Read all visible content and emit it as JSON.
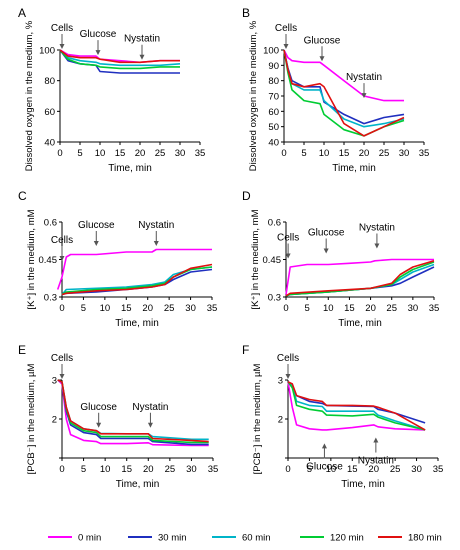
{
  "chart_data": [
    {
      "panel": "A",
      "type": "line",
      "ylabel": "Dissolved oxygen in the medium, %",
      "xlabel": "Time, min",
      "xlim": [
        0,
        35
      ],
      "ylim": [
        40,
        100
      ],
      "xticks": [
        0,
        5,
        10,
        15,
        20,
        25,
        30,
        35
      ],
      "yticks": [
        40,
        60,
        80,
        100
      ],
      "yticklabels": [
        "40",
        "60",
        "80",
        "100"
      ],
      "annotations": [
        {
          "text": "Cells",
          "x": 0.5,
          "y": 100
        },
        {
          "text": "Glucose",
          "x": 9.5,
          "y": 96
        },
        {
          "text": "Nystatin",
          "x": 20.5,
          "y": 93
        }
      ],
      "series": [
        {
          "name": "0 min",
          "x": [
            0,
            2,
            5,
            9,
            10,
            15,
            20,
            25,
            30
          ],
          "y": [
            100,
            97,
            96,
            96,
            94,
            93,
            92,
            93,
            93
          ]
        },
        {
          "name": "30 min",
          "x": [
            0,
            2,
            5,
            9,
            10,
            15,
            20,
            25,
            30
          ],
          "y": [
            100,
            93,
            91,
            90,
            86,
            85,
            85,
            85,
            85
          ]
        },
        {
          "name": "60 min",
          "x": [
            0,
            2,
            5,
            9,
            10,
            15,
            20,
            25,
            30
          ],
          "y": [
            100,
            95,
            93,
            92,
            91,
            90,
            90,
            90,
            91
          ]
        },
        {
          "name": "120 min",
          "x": [
            0,
            2,
            5,
            9,
            10,
            15,
            20,
            25,
            30
          ],
          "y": [
            100,
            94,
            91,
            90,
            89,
            88,
            88,
            89,
            89
          ]
        },
        {
          "name": "180 min",
          "x": [
            0,
            2,
            5,
            9,
            10,
            15,
            20,
            25,
            30
          ],
          "y": [
            100,
            96,
            95,
            95,
            94,
            92,
            92,
            93,
            93
          ]
        }
      ]
    },
    {
      "panel": "B",
      "type": "line",
      "ylabel": "Dissolved oxygen in the medium, %",
      "xlabel": "Time, min",
      "xlim": [
        0,
        35
      ],
      "ylim": [
        40,
        100
      ],
      "xticks": [
        0,
        5,
        10,
        15,
        20,
        25,
        30,
        35
      ],
      "yticks": [
        40,
        50,
        60,
        70,
        80,
        90,
        100
      ],
      "yticklabels": [
        "40",
        "50",
        "60",
        "70",
        "80",
        "90",
        "100"
      ],
      "annotations": [
        {
          "text": "Cells",
          "x": 0.5,
          "y": 100
        },
        {
          "text": "Glucose",
          "x": 9.5,
          "y": 92
        },
        {
          "text": "Nystatin",
          "x": 20,
          "y": 68
        }
      ],
      "series": [
        {
          "name": "0 min",
          "x": [
            0,
            1,
            2,
            5,
            9,
            10,
            15,
            20,
            25,
            30
          ],
          "y": [
            100,
            95,
            93,
            92,
            92,
            90,
            80,
            70,
            67,
            67
          ]
        },
        {
          "name": "30 min",
          "x": [
            0,
            1,
            2,
            5,
            9,
            10,
            15,
            20,
            25,
            30
          ],
          "y": [
            100,
            88,
            80,
            76,
            76,
            66,
            58,
            52,
            56,
            58
          ]
        },
        {
          "name": "60 min",
          "x": [
            0,
            1,
            2,
            5,
            9,
            10,
            15,
            20,
            25,
            30
          ],
          "y": [
            100,
            87,
            78,
            74,
            74,
            67,
            55,
            50,
            52,
            55
          ]
        },
        {
          "name": "120 min",
          "x": [
            0,
            1,
            2,
            5,
            9,
            10,
            15,
            20,
            25,
            30
          ],
          "y": [
            100,
            85,
            74,
            67,
            65,
            58,
            48,
            44,
            50,
            54
          ]
        },
        {
          "name": "180 min",
          "x": [
            0,
            1,
            2,
            5,
            9,
            10,
            15,
            20,
            25,
            30
          ],
          "y": [
            100,
            87,
            78,
            76,
            78,
            76,
            52,
            44,
            50,
            56
          ]
        }
      ]
    },
    {
      "panel": "C",
      "type": "line",
      "ylabel": "[K⁺] in the medium, mM",
      "xlabel": "Time, min",
      "xlim": [
        0,
        35
      ],
      "ylim": [
        0.3,
        0.6
      ],
      "xticks": [
        0,
        5,
        10,
        15,
        20,
        25,
        30,
        35
      ],
      "yticks": [
        0.3,
        0.45,
        0.6
      ],
      "yticklabels": [
        "0.3",
        "0.45",
        "0.6"
      ],
      "annotations": [
        {
          "text": "Cells",
          "x": 0,
          "y": 0.44
        },
        {
          "text": "Glucose",
          "x": 8,
          "y": 0.5
        },
        {
          "text": "Nystatin",
          "x": 22,
          "y": 0.5
        }
      ],
      "series": [
        {
          "name": "0 min",
          "x": [
            -1,
            0,
            1,
            2,
            8,
            15,
            21,
            22,
            28,
            35
          ],
          "y": [
            0.33,
            0.38,
            0.46,
            0.47,
            0.47,
            0.48,
            0.48,
            0.49,
            0.49,
            0.49
          ]
        },
        {
          "name": "30 min",
          "x": [
            0,
            1,
            8,
            15,
            21,
            24,
            26,
            30,
            35
          ],
          "y": [
            0.31,
            0.315,
            0.32,
            0.33,
            0.34,
            0.35,
            0.37,
            0.4,
            0.41
          ]
        },
        {
          "name": "60 min",
          "x": [
            0,
            1,
            8,
            15,
            21,
            24,
            26,
            30,
            35
          ],
          "y": [
            0.31,
            0.33,
            0.335,
            0.34,
            0.35,
            0.36,
            0.39,
            0.41,
            0.42
          ]
        },
        {
          "name": "120 min",
          "x": [
            0,
            1,
            8,
            15,
            21,
            24,
            26,
            30,
            35
          ],
          "y": [
            0.31,
            0.32,
            0.33,
            0.335,
            0.345,
            0.355,
            0.38,
            0.41,
            0.42
          ]
        },
        {
          "name": "180 min",
          "x": [
            0,
            1,
            8,
            15,
            21,
            24,
            26,
            30,
            35
          ],
          "y": [
            0.31,
            0.315,
            0.325,
            0.33,
            0.34,
            0.35,
            0.38,
            0.415,
            0.43
          ]
        }
      ]
    },
    {
      "panel": "D",
      "type": "line",
      "ylabel": "[K⁺] in the medium, mM",
      "xlabel": "Time, min",
      "xlim": [
        0,
        35
      ],
      "ylim": [
        0.3,
        0.6
      ],
      "xticks": [
        0,
        5,
        10,
        15,
        20,
        25,
        30,
        35
      ],
      "yticks": [
        0.3,
        0.45,
        0.6
      ],
      "yticklabels": [
        "0.3",
        "0.45",
        "0.6"
      ],
      "annotations": [
        {
          "text": "Cells",
          "x": 0.5,
          "y": 0.45
        },
        {
          "text": "Glucose",
          "x": 9.5,
          "y": 0.47
        },
        {
          "text": "Nystatin",
          "x": 21.5,
          "y": 0.49
        }
      ],
      "series": [
        {
          "name": "0 min",
          "x": [
            0,
            1,
            5,
            10,
            15,
            20,
            21,
            25,
            30,
            35
          ],
          "y": [
            0.31,
            0.42,
            0.43,
            0.43,
            0.435,
            0.44,
            0.445,
            0.45,
            0.45,
            0.45
          ]
        },
        {
          "name": "30 min",
          "x": [
            0,
            1,
            10,
            20,
            25,
            27,
            30,
            35
          ],
          "y": [
            0.305,
            0.31,
            0.32,
            0.335,
            0.345,
            0.355,
            0.38,
            0.42
          ]
        },
        {
          "name": "60 min",
          "x": [
            0,
            1,
            10,
            20,
            25,
            27,
            30,
            35
          ],
          "y": [
            0.305,
            0.31,
            0.32,
            0.335,
            0.35,
            0.37,
            0.4,
            0.43
          ]
        },
        {
          "name": "120 min",
          "x": [
            0,
            1,
            10,
            20,
            25,
            27,
            30,
            35
          ],
          "y": [
            0.305,
            0.31,
            0.32,
            0.335,
            0.35,
            0.38,
            0.41,
            0.44
          ]
        },
        {
          "name": "180 min",
          "x": [
            0,
            1,
            10,
            20,
            25,
            27,
            30,
            35
          ],
          "y": [
            0.305,
            0.315,
            0.325,
            0.335,
            0.355,
            0.39,
            0.42,
            0.445
          ]
        }
      ]
    },
    {
      "panel": "E",
      "type": "line",
      "ylabel": "[PCB⁻] in the medium, µM",
      "xlabel": "Time, min",
      "xlim": [
        0,
        35
      ],
      "ylim": [
        1,
        3
      ],
      "xticks": [
        0,
        5,
        10,
        15,
        20,
        25,
        30,
        35
      ],
      "yticks": [
        1,
        2,
        3
      ],
      "yticklabels": [
        "",
        "2",
        "3"
      ],
      "annotations": [
        {
          "text": "Cells",
          "x": 0,
          "y": 3.0
        },
        {
          "text": "Glucose",
          "x": 8.5,
          "y": 1.75
        },
        {
          "text": "Nystatin",
          "x": 20.5,
          "y": 1.75
        }
      ],
      "series": [
        {
          "name": "0 min",
          "x": [
            -1,
            0,
            1,
            2,
            5,
            8,
            9,
            15,
            20,
            21,
            30,
            34
          ],
          "y": [
            3.0,
            2.9,
            2.0,
            1.6,
            1.45,
            1.42,
            1.37,
            1.37,
            1.39,
            1.34,
            1.32,
            1.32
          ]
        },
        {
          "name": "30 min",
          "x": [
            -1,
            0,
            1,
            2,
            5,
            8,
            9,
            15,
            20,
            21,
            30,
            34
          ],
          "y": [
            3.0,
            2.95,
            2.2,
            1.85,
            1.65,
            1.6,
            1.5,
            1.5,
            1.5,
            1.42,
            1.35,
            1.35
          ]
        },
        {
          "name": "60 min",
          "x": [
            -1,
            0,
            1,
            2,
            5,
            8,
            9,
            15,
            20,
            21,
            30,
            34
          ],
          "y": [
            3.0,
            2.95,
            2.3,
            1.95,
            1.75,
            1.7,
            1.63,
            1.62,
            1.62,
            1.55,
            1.48,
            1.48
          ]
        },
        {
          "name": "120 min",
          "x": [
            -1,
            0,
            1,
            2,
            5,
            8,
            9,
            15,
            20,
            21,
            30,
            34
          ],
          "y": [
            3.0,
            2.95,
            2.25,
            1.9,
            1.7,
            1.65,
            1.55,
            1.55,
            1.55,
            1.45,
            1.4,
            1.4
          ]
        },
        {
          "name": "180 min",
          "x": [
            -1,
            0,
            1,
            2,
            5,
            8,
            9,
            15,
            20,
            21,
            30,
            34
          ],
          "y": [
            3.0,
            2.95,
            2.3,
            1.95,
            1.75,
            1.7,
            1.62,
            1.62,
            1.62,
            1.5,
            1.45,
            1.42
          ]
        }
      ]
    },
    {
      "panel": "F",
      "type": "line",
      "ylabel": "[PCB⁻] in the medium, µM",
      "xlabel": "Time, min",
      "xlim": [
        0,
        35
      ],
      "ylim": [
        1,
        3
      ],
      "xticks": [
        0,
        5,
        10,
        15,
        20,
        25,
        30,
        35
      ],
      "yticks": [
        1,
        2,
        3
      ],
      "yticklabels": [
        "",
        "2",
        "3"
      ],
      "annotations": [
        {
          "text": "Cells",
          "x": 0,
          "y": 3.0
        },
        {
          "text": "Glucose",
          "x": 8.5,
          "y": 1.4
        },
        {
          "text": "Nystatin",
          "x": 20.5,
          "y": 1.55
        }
      ],
      "series": [
        {
          "name": "0 min",
          "x": [
            0,
            1,
            2,
            5,
            8,
            9,
            15,
            20,
            21,
            25,
            32
          ],
          "y": [
            2.95,
            2.3,
            1.85,
            1.75,
            1.72,
            1.72,
            1.78,
            1.85,
            1.8,
            1.75,
            1.72
          ]
        },
        {
          "name": "30 min",
          "x": [
            0,
            1,
            2,
            5,
            8,
            9,
            15,
            20,
            21,
            25,
            32
          ],
          "y": [
            2.95,
            2.85,
            2.6,
            2.45,
            2.4,
            2.35,
            2.33,
            2.32,
            2.25,
            2.15,
            1.9
          ]
        },
        {
          "name": "60 min",
          "x": [
            0,
            1,
            2,
            5,
            8,
            9,
            15,
            20,
            21,
            25,
            32
          ],
          "y": [
            2.95,
            2.85,
            2.45,
            2.35,
            2.32,
            2.2,
            2.2,
            2.2,
            2.1,
            1.95,
            1.72
          ]
        },
        {
          "name": "120 min",
          "x": [
            0,
            1,
            2,
            5,
            8,
            9,
            15,
            20,
            21,
            25,
            32
          ],
          "y": [
            2.95,
            2.8,
            2.35,
            2.25,
            2.2,
            2.1,
            2.08,
            2.12,
            2.05,
            1.9,
            1.72
          ]
        },
        {
          "name": "180 min",
          "x": [
            0,
            1,
            2,
            5,
            8,
            9,
            15,
            20,
            21,
            25,
            32
          ],
          "y": [
            2.95,
            2.9,
            2.6,
            2.5,
            2.45,
            2.35,
            2.35,
            2.33,
            2.3,
            2.15,
            1.72
          ]
        }
      ]
    }
  ],
  "legend": {
    "position": "bottom",
    "entries": [
      {
        "label": "0 min",
        "color": "#ff00ff"
      },
      {
        "label": "30 min",
        "color": "#1f2fbf"
      },
      {
        "label": "60 min",
        "color": "#00b4c8"
      },
      {
        "label": "120 min",
        "color": "#00cc33"
      },
      {
        "label": "180 min",
        "color": "#e01010"
      }
    ]
  }
}
